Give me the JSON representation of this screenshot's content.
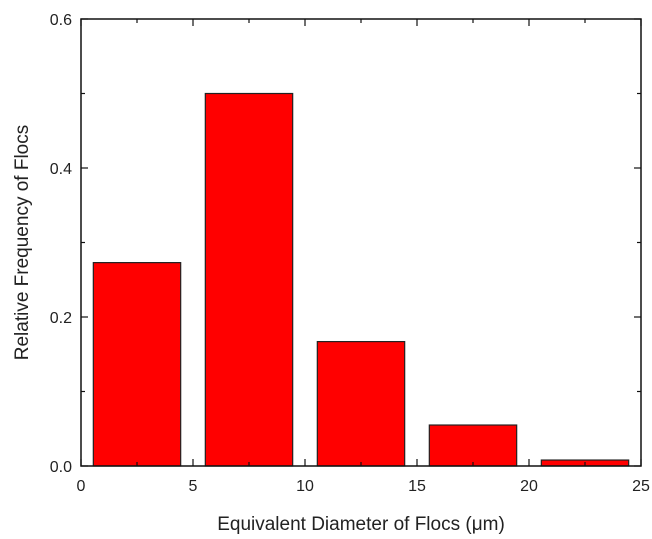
{
  "chart_data": {
    "type": "bar",
    "title": "",
    "xlabel": "Equivalent Diameter of Flocs (μm)",
    "ylabel": "Relative Frequency of Flocs",
    "xlim": [
      0,
      25
    ],
    "ylim": [
      0,
      0.6
    ],
    "x_ticks": [
      0,
      5,
      10,
      15,
      20,
      25
    ],
    "x_tick_labels": [
      "0",
      "5",
      "10",
      "15",
      "20",
      "25"
    ],
    "y_ticks": [
      0,
      0.2,
      0.4,
      0.6
    ],
    "y_tick_labels": [
      "0.0",
      "0.2",
      "0.4",
      "0.6"
    ],
    "bin_edges": [
      0,
      5,
      10,
      15,
      20,
      25
    ],
    "values": [
      0.273,
      0.5,
      0.167,
      0.055,
      0.008
    ],
    "grid": false,
    "legend": "none",
    "bar_color": "#ff0000",
    "edge_color": "#222222"
  }
}
